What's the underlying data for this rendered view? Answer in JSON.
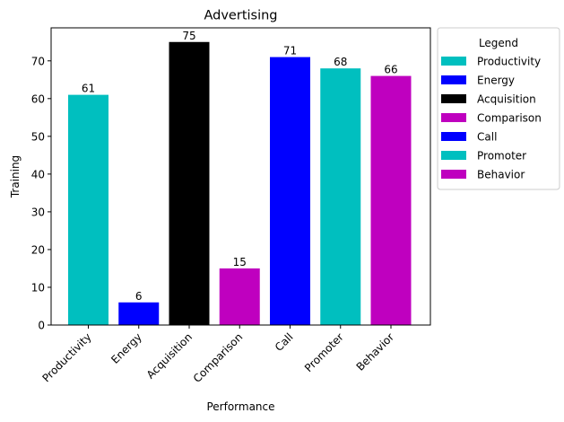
{
  "chart_data": {
    "type": "bar",
    "title": "Advertising",
    "xlabel": "Performance",
    "ylabel": "Training",
    "categories": [
      "Productivity",
      "Energy",
      "Acquisition",
      "Comparison",
      "Call",
      "Promoter",
      "Behavior"
    ],
    "values": [
      61,
      6,
      75,
      15,
      71,
      68,
      66
    ],
    "colors": [
      "#00bfbf",
      "#0000ff",
      "#000000",
      "#bf00bf",
      "#0000ff",
      "#00bfbf",
      "#bf00bf"
    ],
    "ylim": [
      0,
      78.75
    ],
    "yticks": [
      0,
      10,
      20,
      30,
      40,
      50,
      60,
      70
    ],
    "grid": false,
    "legend": {
      "title": "Legend",
      "placement": "outside-right",
      "entries": [
        "Productivity",
        "Energy",
        "Acquisition",
        "Comparison",
        "Call",
        "Promoter",
        "Behavior"
      ]
    }
  }
}
